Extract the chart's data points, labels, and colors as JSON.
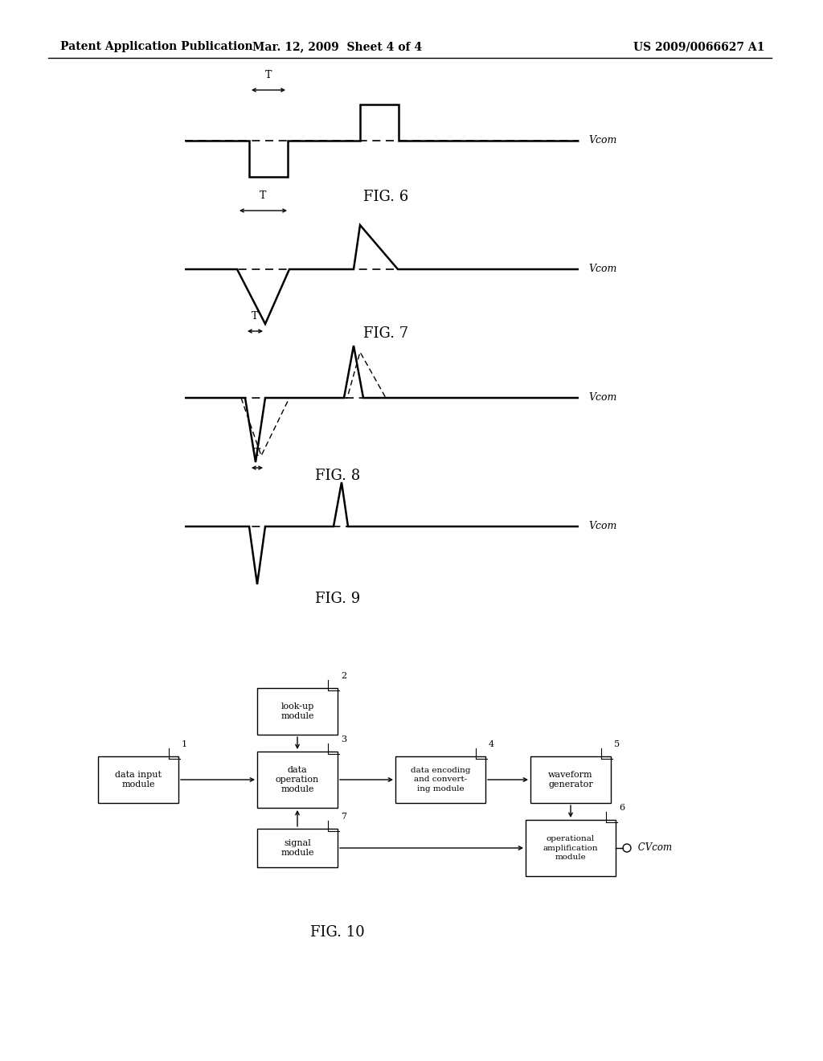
{
  "background_color": "#ffffff",
  "header_left": "Patent Application Publication",
  "header_mid": "Mar. 12, 2009  Sheet 4 of 4",
  "header_right": "US 2009/0066627 A1",
  "fig6_label": "FIG. 6",
  "fig7_label": "FIG. 7",
  "fig8_label": "FIG. 8",
  "fig9_label": "FIG. 9",
  "fig10_label": "FIG. 10",
  "vcom_label": "Vcom",
  "cvcom_label": "CVcom"
}
